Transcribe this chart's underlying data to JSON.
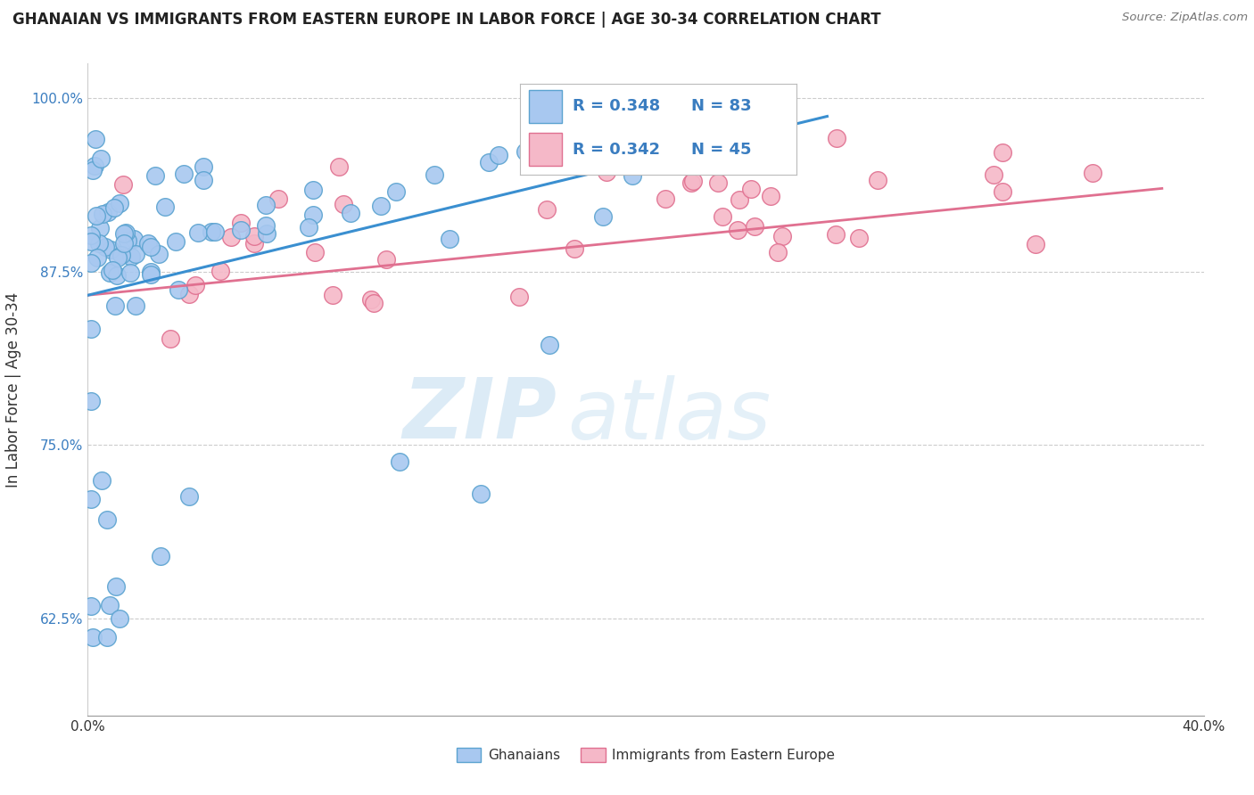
{
  "title": "GHANAIAN VS IMMIGRANTS FROM EASTERN EUROPE IN LABOR FORCE | AGE 30-34 CORRELATION CHART",
  "source": "Source: ZipAtlas.com",
  "ylabel": "In Labor Force | Age 30-34",
  "xlim": [
    0.0,
    0.4
  ],
  "ylim": [
    0.555,
    1.025
  ],
  "xticks": [
    0.0,
    0.1,
    0.2,
    0.3,
    0.4
  ],
  "xticklabels": [
    "0.0%",
    "",
    "",
    "",
    "40.0%"
  ],
  "yticks": [
    0.625,
    0.75,
    0.875,
    1.0
  ],
  "yticklabels": [
    "62.5%",
    "75.0%",
    "87.5%",
    "100.0%"
  ],
  "blue_color": "#a8c8f0",
  "blue_edge": "#5ba3d0",
  "pink_color": "#f5b8c8",
  "pink_edge": "#e07090",
  "trend_blue": "#3a8fd0",
  "trend_pink": "#e07090",
  "grid_color": "#cccccc",
  "bg_color": "#ffffff",
  "text_color_blue": "#3a7dc0",
  "text_color_dark": "#333333",
  "legend_text_color": "#3a7dc0",
  "blue_trend_x": [
    0.0,
    0.265
  ],
  "blue_trend_y": [
    0.858,
    0.987
  ],
  "pink_trend_x": [
    0.0,
    0.385
  ],
  "pink_trend_y": [
    0.858,
    0.935
  ],
  "legend_R_blue": "R = 0.348",
  "legend_N_blue": "N = 83",
  "legend_R_pink": "R = 0.342",
  "legend_N_pink": "N = 45",
  "blue_N": 83,
  "pink_N": 45,
  "watermark_zip_color": "#c5dff0",
  "watermark_atlas_color": "#c5dff0"
}
